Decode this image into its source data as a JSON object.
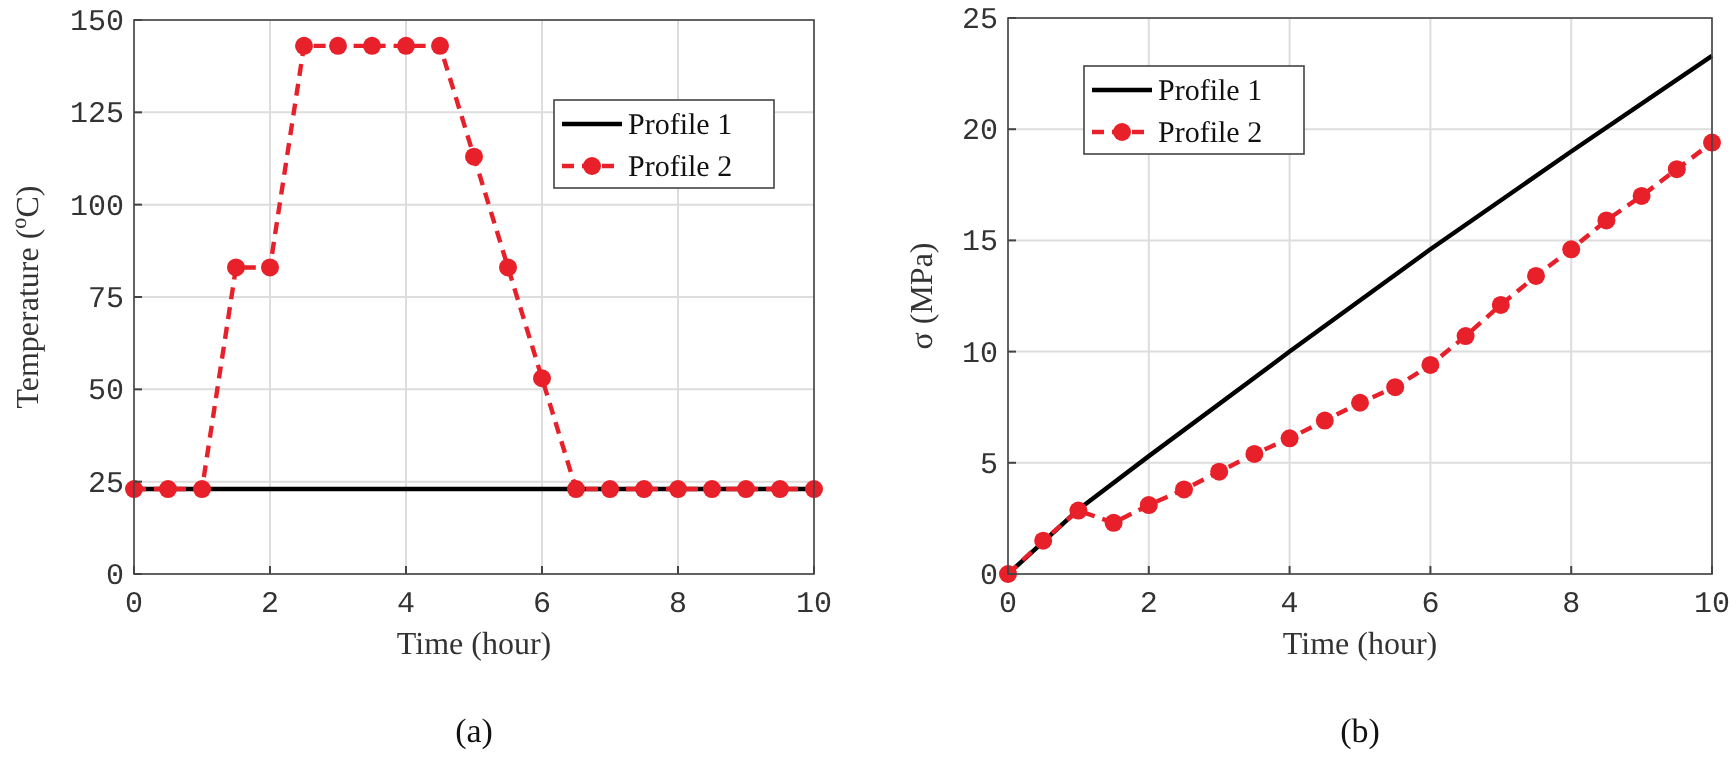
{
  "chart_data": [
    {
      "type": "line",
      "title": "(a)",
      "xlabel": "Time (hour)",
      "ylabel": "Temperature ($^{o}$C)",
      "xlim": [
        0,
        10
      ],
      "xticks": [
        0,
        2,
        4,
        6,
        8,
        10
      ],
      "ylim": [
        0,
        150
      ],
      "yticks": [
        0,
        25,
        50,
        75,
        100,
        125,
        150
      ],
      "grid": true,
      "legend": "top right",
      "series": [
        {
          "name": "Profile 1",
          "color": "#000000",
          "x": [
            0,
            10
          ],
          "values": [
            23,
            23
          ],
          "marker": "none",
          "line_style": "solid"
        },
        {
          "name": "Profile 2",
          "color": "#e8202a",
          "x": [
            0,
            0.5,
            1,
            1.5,
            2,
            2.5,
            3,
            3.5,
            4,
            4.5,
            5,
            5.5,
            6,
            6.5,
            7,
            7.5,
            8,
            8.5,
            9,
            9.5,
            10
          ],
          "values": [
            23,
            23,
            23,
            83,
            83,
            143,
            143,
            143,
            143,
            143,
            113,
            83,
            53,
            23,
            23,
            23,
            23,
            23,
            23,
            23,
            23
          ],
          "marker": "circle",
          "line_style": "dashed"
        }
      ]
    },
    {
      "type": "line",
      "title": "(b)",
      "xlabel": "Time (hour)",
      "ylabel": "σ (MPa)",
      "xlim": [
        0,
        10
      ],
      "xticks": [
        0,
        2,
        4,
        6,
        8,
        10
      ],
      "ylim": [
        0,
        25
      ],
      "yticks": [
        0,
        5,
        10,
        15,
        20,
        25
      ],
      "grid": true,
      "legend": "top left",
      "series": [
        {
          "name": "Profile 1",
          "color": "#000000",
          "x": [
            0,
            1,
            2,
            4,
            6,
            8,
            10
          ],
          "values": [
            0,
            2.9,
            5.3,
            10,
            14.6,
            19,
            23.3
          ],
          "marker": "none",
          "line_style": "solid"
        },
        {
          "name": "Profile 2",
          "color": "#e8202a",
          "x": [
            0,
            0.5,
            1,
            1.5,
            2,
            2.5,
            3,
            3.5,
            4,
            4.5,
            5,
            5.5,
            6,
            6.5,
            7,
            7.5,
            8,
            8.5,
            9,
            9.5,
            10
          ],
          "values": [
            0,
            1.5,
            2.85,
            2.3,
            3.1,
            3.8,
            4.6,
            5.4,
            6.1,
            6.9,
            7.7,
            8.4,
            9.4,
            10.7,
            12.1,
            13.4,
            14.6,
            15.9,
            17,
            18.2,
            19.4
          ],
          "marker": "circle",
          "line_style": "dashed"
        }
      ]
    }
  ]
}
